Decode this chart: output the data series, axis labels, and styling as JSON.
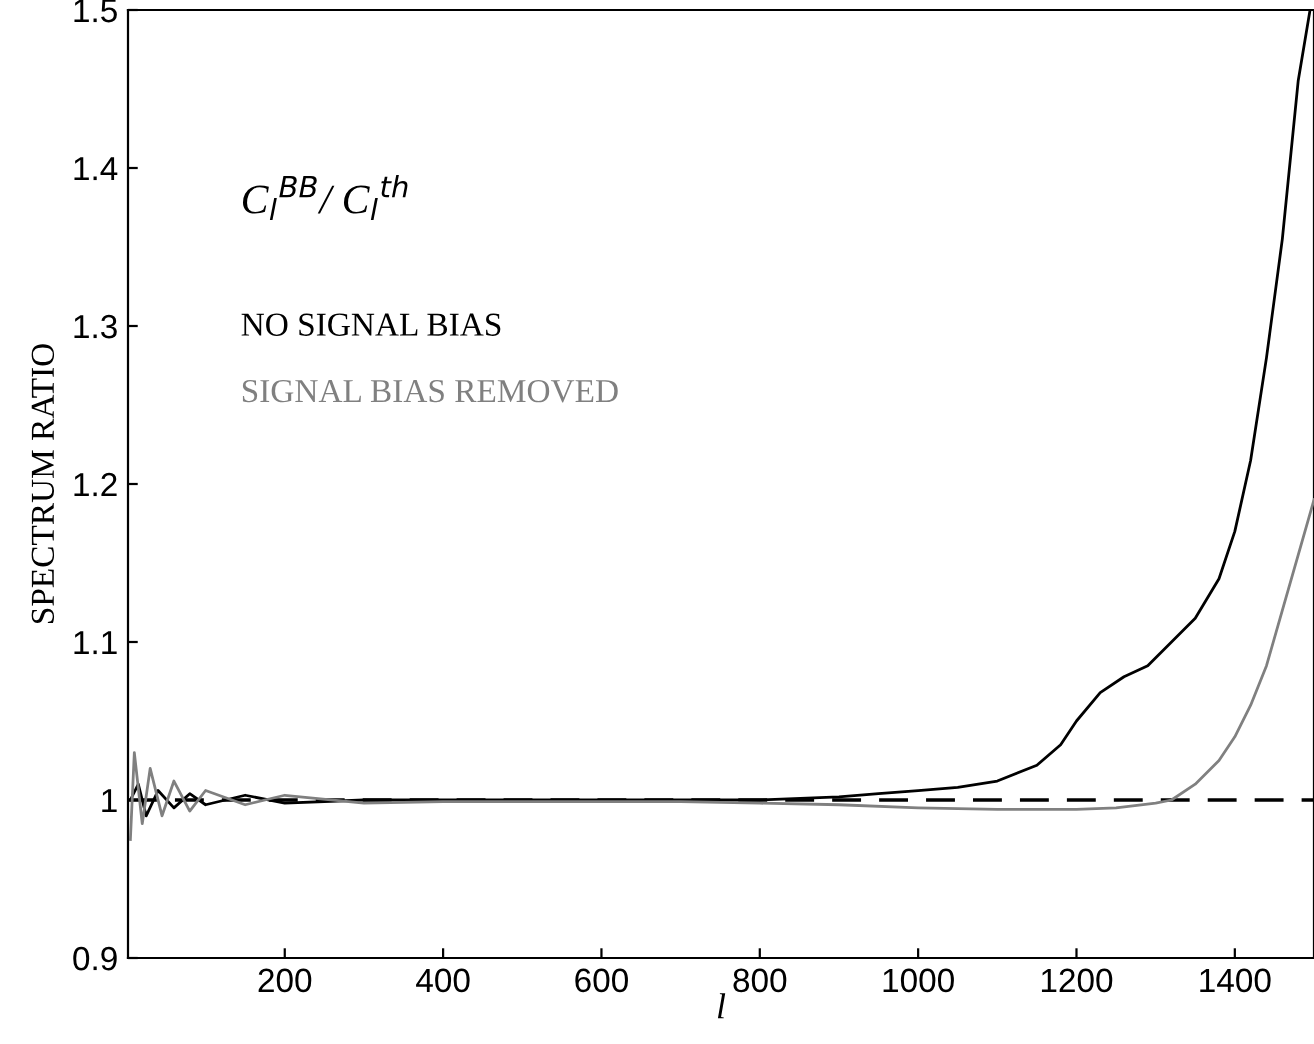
{
  "chart_data": {
    "type": "line",
    "xlabel": "l",
    "ylabel": "SPECTRUM RATIO",
    "annotations": [
      "C$_{l}$$^{BB}$/ C$_{l}$$^{th}$"
    ],
    "xlim": [
      2,
      1500
    ],
    "ylim": [
      0.9,
      1.5
    ],
    "xticks": [
      200,
      400,
      600,
      800,
      1000,
      1200,
      1400
    ],
    "yticks": [
      0.9,
      1,
      1.1,
      1.2,
      1.3,
      1.4,
      1.5
    ],
    "grid": false,
    "legend": false,
    "ref_lines": [
      {
        "axis": "y",
        "value": 1,
        "line_style": "dashed",
        "color": "#000000"
      }
    ],
    "series": [
      {
        "name": "NO SIGNAL BIAS",
        "color": "#000000",
        "x": [
          5,
          15,
          25,
          40,
          60,
          80,
          100,
          150,
          200,
          300,
          400,
          500,
          600,
          700,
          800,
          900,
          950,
          1000,
          1050,
          1100,
          1150,
          1180,
          1200,
          1230,
          1260,
          1290,
          1320,
          1350,
          1380,
          1400,
          1420,
          1440,
          1460,
          1480,
          1495
        ],
        "values": [
          1.0,
          1.01,
          0.99,
          1.006,
          0.995,
          1.004,
          0.997,
          1.003,
          0.998,
          1.0,
          1.0,
          1.0,
          1.0,
          1.0,
          1.0,
          1.002,
          1.004,
          1.006,
          1.008,
          1.012,
          1.022,
          1.035,
          1.05,
          1.068,
          1.078,
          1.085,
          1.1,
          1.115,
          1.14,
          1.17,
          1.215,
          1.28,
          1.355,
          1.455,
          1.5
        ]
      },
      {
        "name": "SIGNAL BIAS REMOVED",
        "color": "#808080",
        "x": [
          5,
          10,
          20,
          30,
          45,
          60,
          80,
          100,
          150,
          200,
          300,
          400,
          500,
          600,
          700,
          800,
          900,
          1000,
          1100,
          1200,
          1250,
          1300,
          1320,
          1350,
          1380,
          1400,
          1420,
          1440,
          1460,
          1480,
          1500
        ],
        "values": [
          0.975,
          1.03,
          0.985,
          1.02,
          0.99,
          1.012,
          0.993,
          1.006,
          0.997,
          1.003,
          0.998,
          0.999,
          0.999,
          0.999,
          0.999,
          0.998,
          0.997,
          0.995,
          0.994,
          0.994,
          0.995,
          0.998,
          1.0,
          1.01,
          1.025,
          1.04,
          1.06,
          1.085,
          1.12,
          1.155,
          1.19
        ]
      }
    ]
  }
}
